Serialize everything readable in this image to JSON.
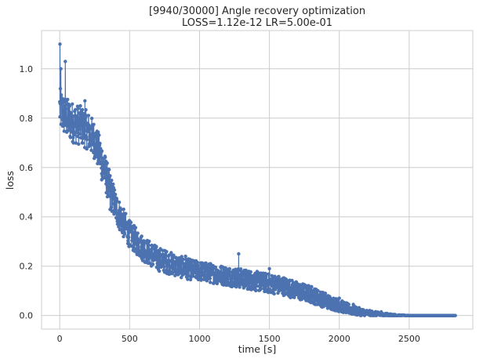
{
  "chart_data": {
    "type": "line",
    "title_line1": "[9940/30000] Angle recovery optimization",
    "title_line2": "LOSS=1.12e-12 LR=5.00e-01",
    "xlabel": "time [s]",
    "ylabel": "loss",
    "xlim": [
      -130,
      2955
    ],
    "ylim": [
      -0.055,
      1.155
    ],
    "xticks": [
      0,
      500,
      1000,
      1500,
      2000,
      2500
    ],
    "xtick_labels": [
      "0",
      "500",
      "1000",
      "1500",
      "2000",
      "2500"
    ],
    "yticks": [
      0.0,
      0.2,
      0.4,
      0.6,
      0.8,
      1.0
    ],
    "ytick_labels": [
      "0.0",
      "0.2",
      "0.4",
      "0.6",
      "0.8",
      "1.0"
    ],
    "grid": true,
    "series": [
      {
        "color": "#4c72b0",
        "marker": "circle",
        "x_range": [
          0,
          2830
        ],
        "trend": {
          "x": [
            0,
            20,
            50,
            100,
            150,
            200,
            250,
            300,
            350,
            400,
            450,
            500,
            600,
            700,
            800,
            900,
            1000,
            1100,
            1200,
            1300,
            1400,
            1500,
            1600,
            1700,
            1800,
            1900,
            2000,
            2100,
            2200,
            2300,
            2400,
            2500,
            2600,
            2700,
            2830
          ],
          "y": [
            0.84,
            0.82,
            0.8,
            0.78,
            0.77,
            0.75,
            0.71,
            0.63,
            0.53,
            0.44,
            0.38,
            0.33,
            0.27,
            0.23,
            0.21,
            0.19,
            0.18,
            0.17,
            0.16,
            0.15,
            0.14,
            0.13,
            0.12,
            0.1,
            0.085,
            0.06,
            0.04,
            0.02,
            0.01,
            0.004,
            0.001,
            0.0,
            0.0,
            0.0,
            0.0
          ]
        },
        "spread": {
          "x": [
            0,
            300,
            500,
            1000,
            1500,
            1800,
            2000,
            2200,
            2400,
            2500,
            2830
          ],
          "y": [
            0.085,
            0.075,
            0.055,
            0.04,
            0.04,
            0.035,
            0.025,
            0.012,
            0.003,
            0.0,
            0.0
          ]
        },
        "sample_points": [
          {
            "x": 2,
            "y": 1.1
          },
          {
            "x": 40,
            "y": 1.03
          },
          {
            "x": 8,
            "y": 1.0
          },
          {
            "x": 180,
            "y": 0.87
          },
          {
            "x": 300,
            "y": 0.55
          },
          {
            "x": 360,
            "y": 0.43
          },
          {
            "x": 680,
            "y": 0.27
          },
          {
            "x": 900,
            "y": 0.24
          },
          {
            "x": 1280,
            "y": 0.25
          },
          {
            "x": 1500,
            "y": 0.19
          },
          {
            "x": 1900,
            "y": 0.09
          },
          {
            "x": 2000,
            "y": 0.07
          },
          {
            "x": 2100,
            "y": 0.045
          },
          {
            "x": 2300,
            "y": 0.015
          }
        ]
      }
    ]
  }
}
